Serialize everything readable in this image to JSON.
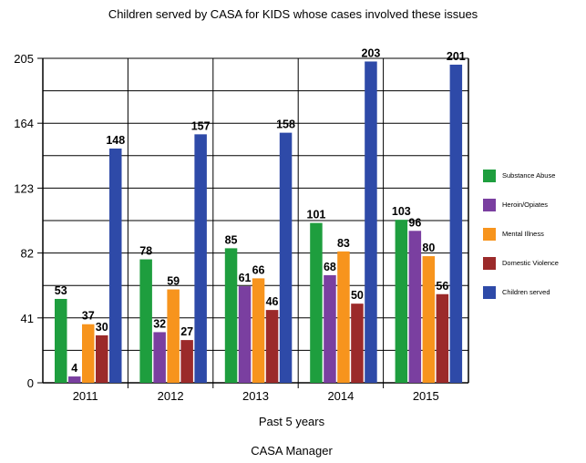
{
  "chart_data": {
    "type": "bar",
    "title": "Children served by CASA for KIDS whose cases involved these issues",
    "xlabel": "Past 5 years",
    "ylabel": "",
    "footer": "CASA Manager",
    "categories": [
      "2011",
      "2012",
      "2013",
      "2014",
      "2015"
    ],
    "ylim": [
      0,
      205
    ],
    "yticks": [
      0,
      41,
      82,
      123,
      164,
      205
    ],
    "grid": true,
    "legend_position": "right",
    "series": [
      {
        "name": "Substance Abuse",
        "color": "#1e9e3e",
        "values": [
          53,
          78,
          85,
          101,
          103
        ]
      },
      {
        "name": "Heroin/Opiates",
        "color": "#7a3fa0",
        "values": [
          4,
          32,
          61,
          68,
          96
        ]
      },
      {
        "name": "Mental Illness",
        "color": "#f7941d",
        "values": [
          37,
          59,
          66,
          83,
          80
        ]
      },
      {
        "name": "Domestic Violence",
        "color": "#9b2a2a",
        "values": [
          30,
          27,
          46,
          50,
          56
        ]
      },
      {
        "name": "Children served",
        "color": "#2e4aa8",
        "values": [
          148,
          157,
          158,
          203,
          201
        ]
      }
    ]
  }
}
